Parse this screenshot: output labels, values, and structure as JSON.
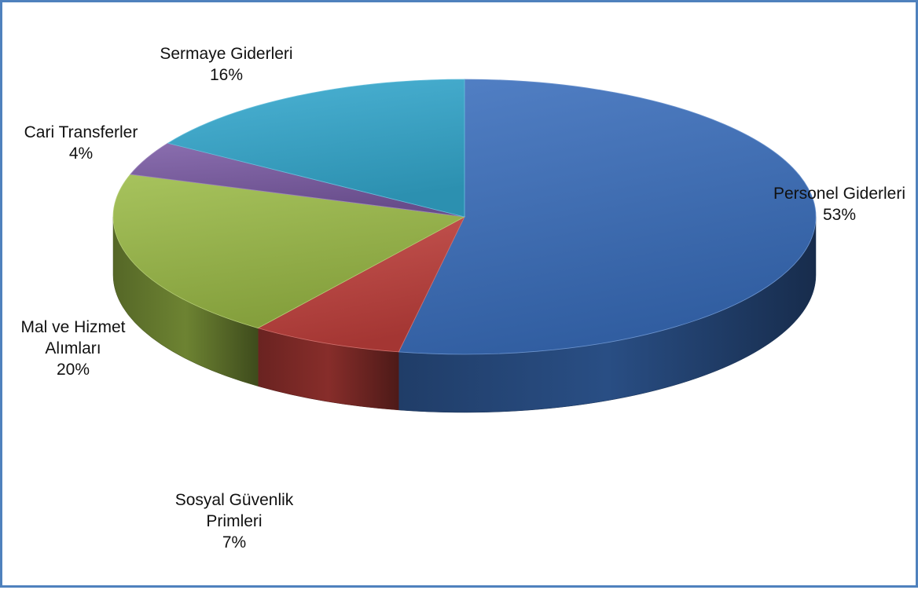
{
  "chart_data": {
    "type": "pie",
    "style": "3d",
    "title": "",
    "slices": [
      {
        "label": [
          "Personel Giderleri"
        ],
        "percent_label": "53%",
        "value": 53,
        "color": "#3a6fbd"
      },
      {
        "label": [
          "Sosyal Güvenlik",
          "Primleri"
        ],
        "percent_label": "7%",
        "value": 7,
        "color": "#c1403c"
      },
      {
        "label": [
          "Mal ve Hizmet",
          "Alımları"
        ],
        "percent_label": "20%",
        "value": 20,
        "color": "#9bbb47"
      },
      {
        "label": [
          "Cari Transferler"
        ],
        "percent_label": "4%",
        "value": 4,
        "color": "#7a5aa4"
      },
      {
        "label": [
          "Sermaye Giderleri"
        ],
        "percent_label": "16%",
        "value": 16,
        "color": "#34a9cf"
      }
    ],
    "legend": "none",
    "data_labels": "outside"
  }
}
